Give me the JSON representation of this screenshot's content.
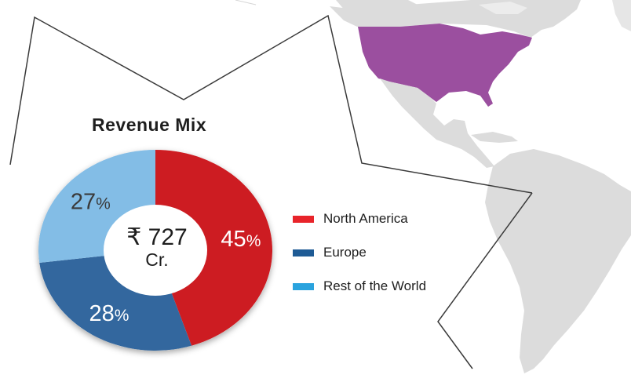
{
  "colors": {
    "map_land": "#dcdcdc",
    "map_highlight": "#9b4f9f",
    "frame_line": "#3a3a3a",
    "text": "#1e1e1e"
  },
  "chart_data": {
    "type": "pie",
    "title": "Revenue Mix",
    "center_label": {
      "value": "₹ 727",
      "unit": "Cr."
    },
    "series": [
      {
        "name": "North America",
        "value": 45,
        "label": "45",
        "suffix": "%",
        "color": "#cd1c22",
        "legend_color": "#e8242a",
        "text_color": "#ffffff"
      },
      {
        "name": "Europe",
        "value": 28,
        "label": "28",
        "suffix": "%",
        "color": "#33679e",
        "legend_color": "#1e5b95",
        "text_color": "#ffffff"
      },
      {
        "name": "Rest of the World",
        "value": 27,
        "label": "27",
        "suffix": "%",
        "color": "#83bde6",
        "legend_color": "#2aa3de",
        "text_color": "#3a3a3a"
      }
    ],
    "legend_position": "right"
  }
}
